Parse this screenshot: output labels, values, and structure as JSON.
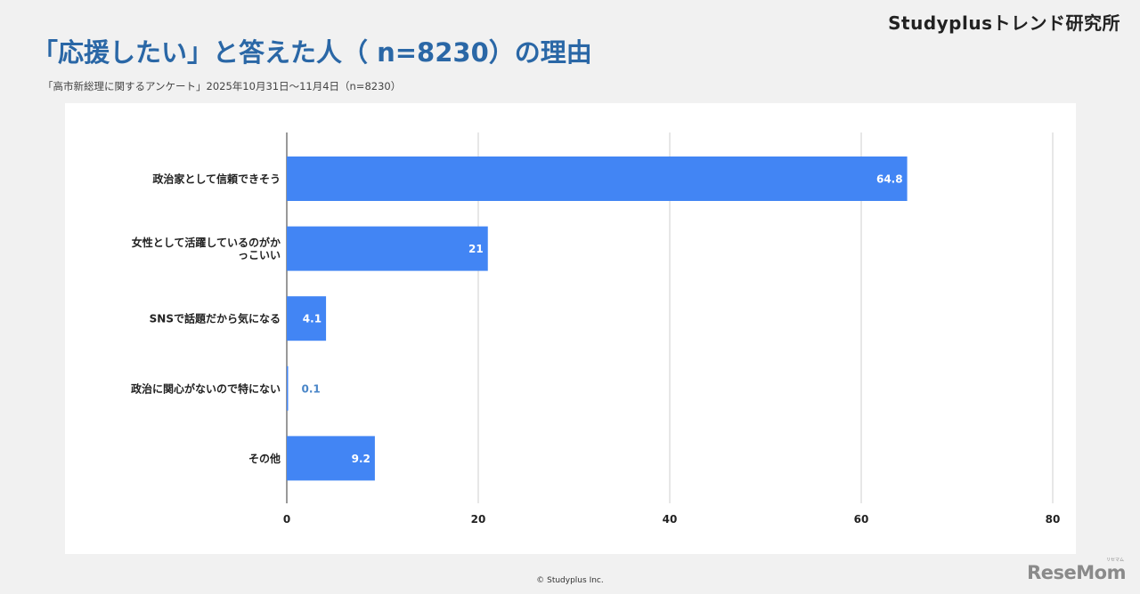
{
  "header": {
    "brand": "Studyplusトレンド研究所",
    "title": "「応援したい」と答えた人（ n=8230）の理由",
    "subtitle": "「高市新総理に関するアンケート」2025年10月31日〜11月4日（n=8230）"
  },
  "footer": {
    "copyright": "© Studyplus Inc.",
    "logo": "ReseMom",
    "logo_ruby": "リセマム"
  },
  "chart_data": {
    "type": "bar",
    "orientation": "horizontal",
    "categories": [
      [
        "政治家として信頼できそう"
      ],
      [
        "女性として活躍しているのがか",
        "っこいい"
      ],
      [
        "SNSで話題だから気になる"
      ],
      [
        "政治に関心がないので特にない"
      ],
      [
        "その他"
      ]
    ],
    "values": [
      64.8,
      21,
      4.1,
      0.1,
      9.2
    ],
    "value_labels": [
      "64.8",
      "21",
      "4.1",
      "0.1",
      "9.2"
    ],
    "xlim": [
      0,
      80
    ],
    "xticks": [
      0,
      20,
      40,
      60,
      80
    ],
    "xtick_labels": [
      "0",
      "20",
      "40",
      "60",
      "80"
    ],
    "grid": true,
    "bar_color": "#4285f4",
    "label_color_inside": "#ffffff",
    "label_color_outside": "#4a86c8"
  }
}
